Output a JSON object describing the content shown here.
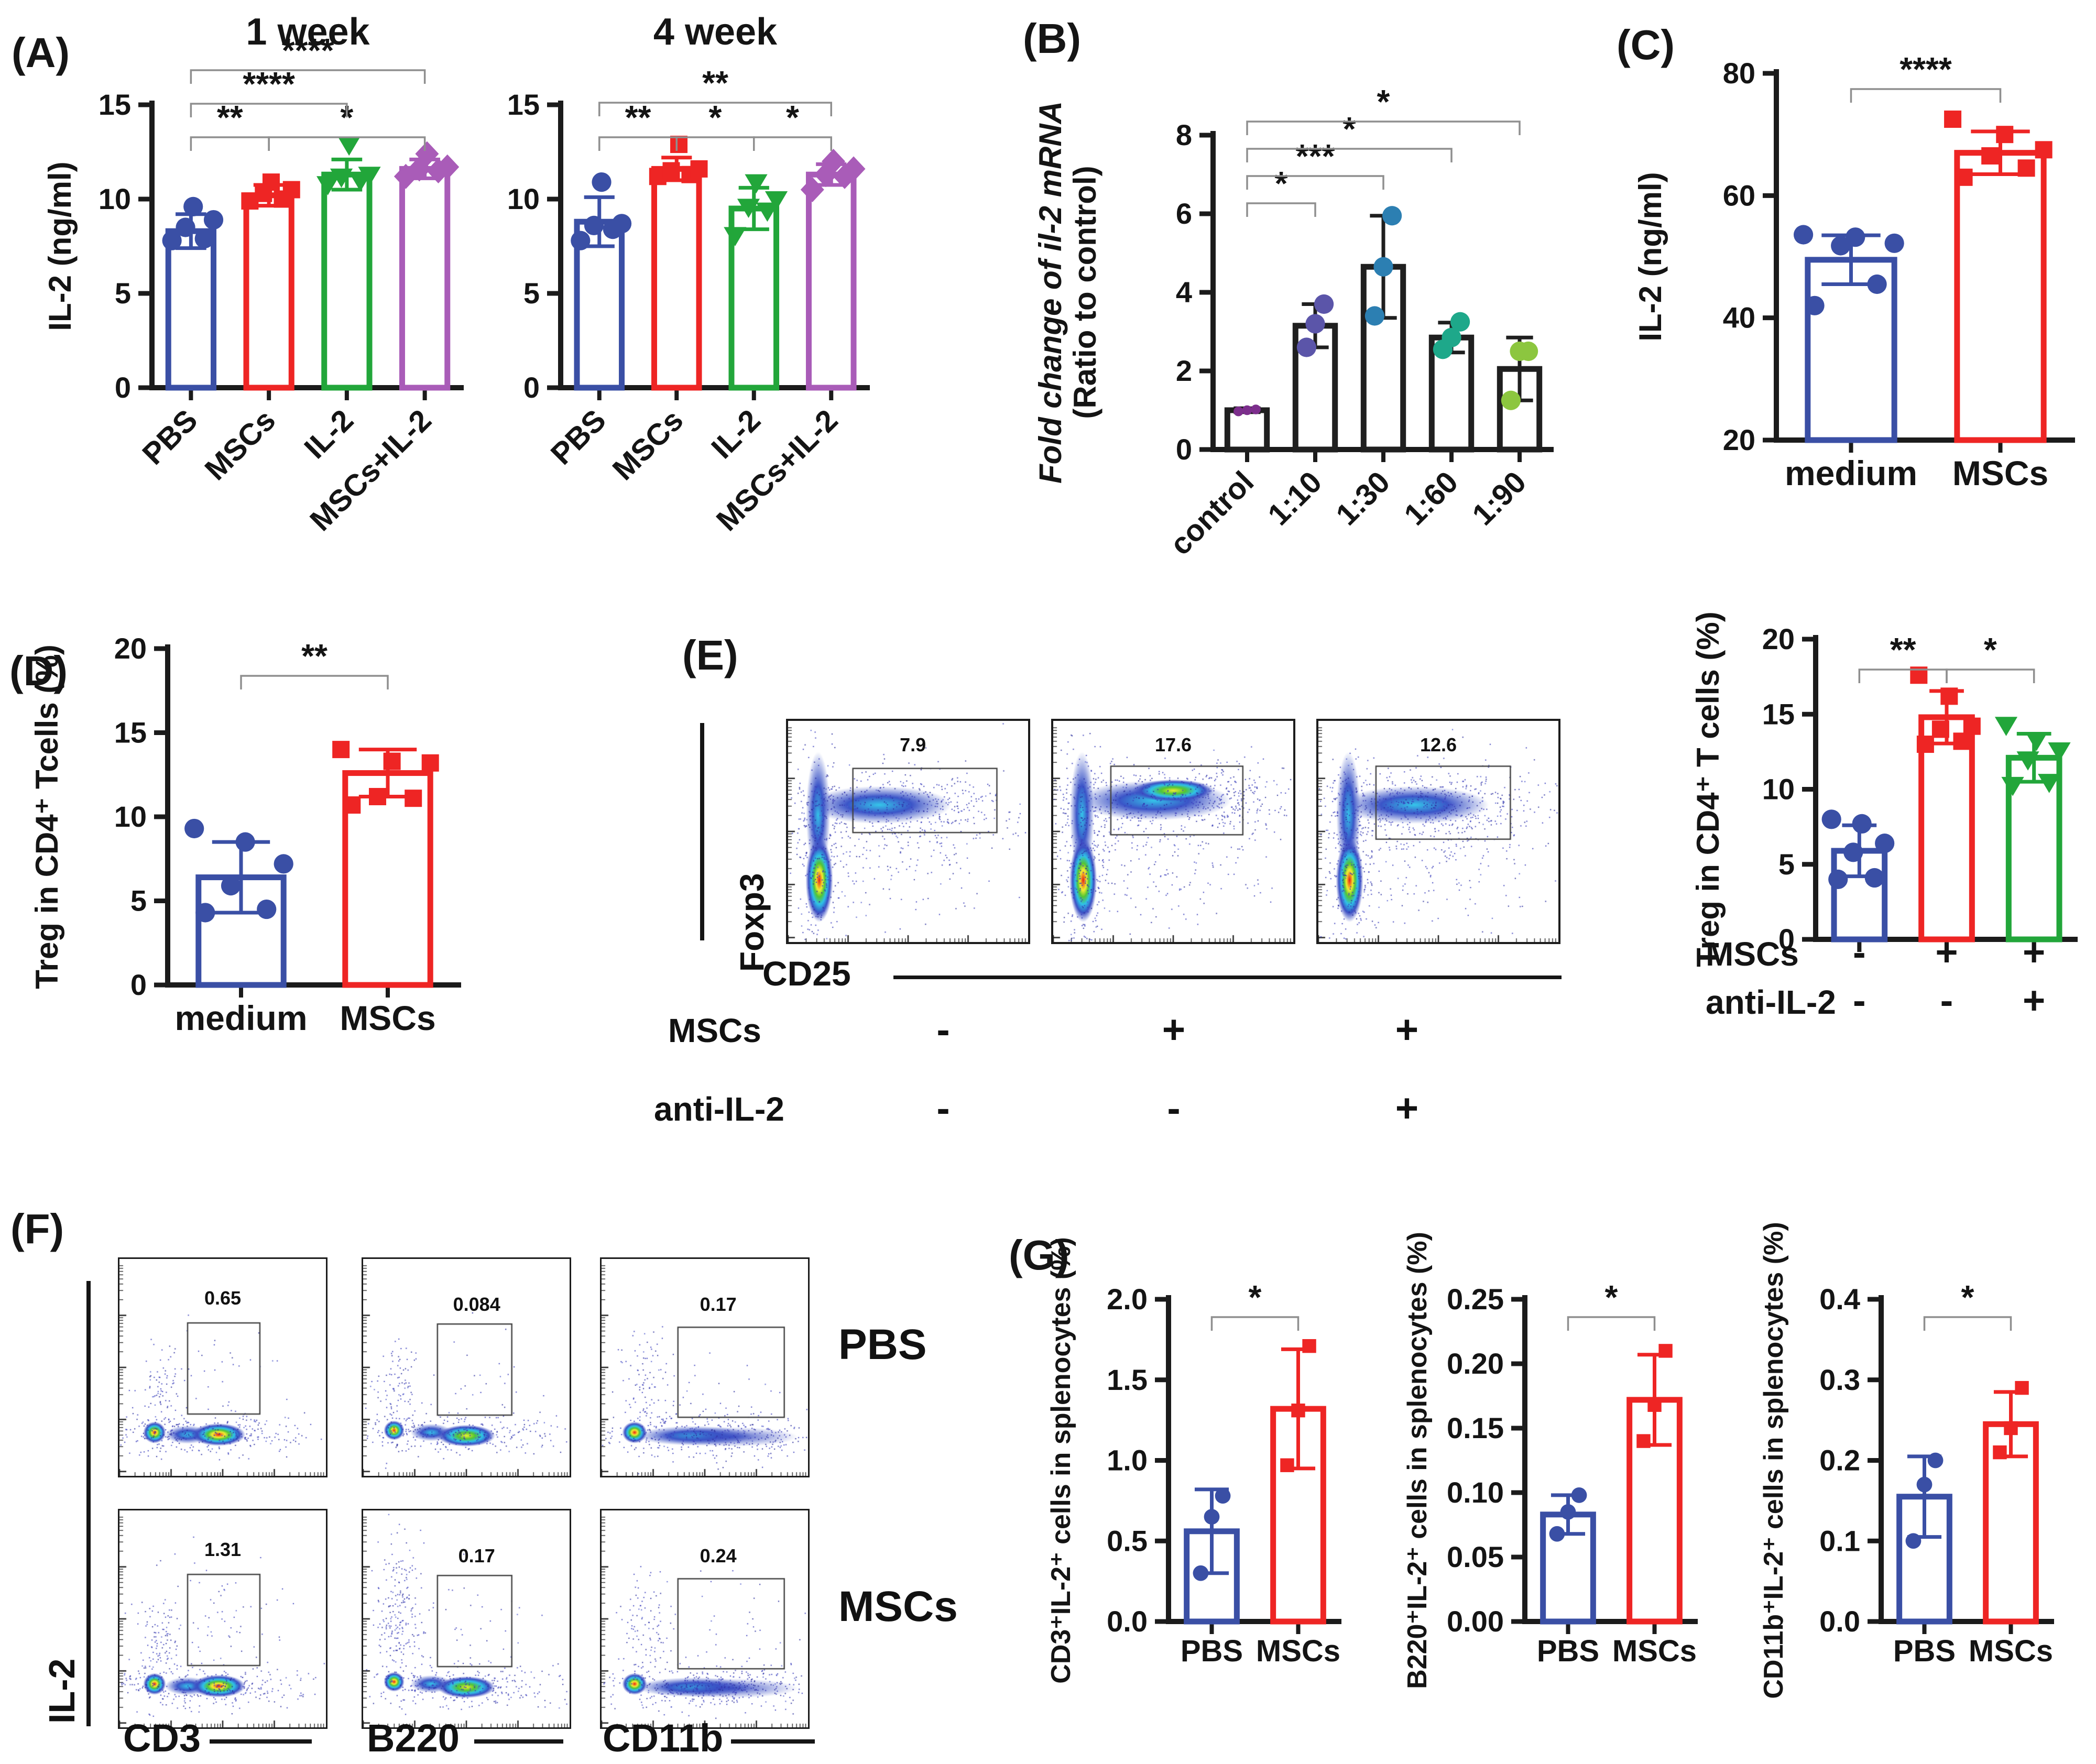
{
  "panel_labels": {
    "a": "(A)",
    "b": "(B)",
    "c": "(C)",
    "d": "(D)",
    "e": "(E)",
    "f": "(F)",
    "g": "(G)"
  },
  "colors": {
    "blue": "#3a4fa5",
    "red": "#ee2524",
    "green": "#22a63a",
    "purple": "#a95cb8",
    "black": "#1f1f1f",
    "bracket": "#8f8f8f",
    "axis": "#1b1b1b"
  },
  "chart_data": [
    {
      "id": "a1",
      "type": "bar",
      "title": "1 week",
      "ylabel": [
        {
          "text": "IL-2 (ng/ml)",
          "italic": false
        }
      ],
      "ymin": 0,
      "ymax": 15,
      "yticks": [
        0,
        5,
        10,
        15
      ],
      "ytick_labels": [
        "0",
        "5",
        "10",
        "15"
      ],
      "categories": [
        "PBS",
        "MSCs",
        "IL-2",
        "MSCs+IL-2"
      ],
      "values": [
        8.3,
        10.2,
        11.3,
        11.6
      ],
      "errors": [
        0.9,
        0.55,
        0.8,
        0.5
      ],
      "points": [
        [
          7.8,
          7.9,
          8.5,
          8.9,
          9.6
        ],
        [
          9.9,
          10.0,
          10.3,
          10.5,
          10.9
        ],
        [
          10.8,
          11.0,
          11.2,
          11.3,
          12.9
        ],
        [
          11.2,
          11.5,
          11.6,
          11.7,
          12.4
        ]
      ],
      "colors": [
        "blue",
        "red",
        "green",
        "purple"
      ],
      "markers": [
        "circle",
        "square",
        "triangle",
        "diamond"
      ],
      "brackets": [
        {
          "a": 0,
          "b": 1,
          "label": "**",
          "row": 0
        },
        {
          "a": 1,
          "b": 3,
          "label": "*",
          "row": 0
        },
        {
          "a": 0,
          "b": 2,
          "label": "****",
          "row": 1
        },
        {
          "a": 0,
          "b": 3,
          "label": "****",
          "row": 2
        }
      ]
    },
    {
      "id": "a2",
      "type": "bar",
      "title": "4 week",
      "ylabel": [],
      "ymin": 0,
      "ymax": 15,
      "yticks": [
        0,
        5,
        10,
        15
      ],
      "ytick_labels": [
        "0",
        "5",
        "10",
        "15"
      ],
      "categories": [
        "PBS",
        "MSCs",
        "IL-2",
        "MSCs+IL-2"
      ],
      "values": [
        8.8,
        11.6,
        9.5,
        11.3
      ],
      "errors": [
        1.3,
        0.6,
        1.1,
        0.55
      ],
      "points": [
        [
          7.8,
          8.4,
          8.6,
          8.7,
          10.9
        ],
        [
          11.2,
          11.3,
          11.5,
          11.6,
          12.9
        ],
        [
          8.1,
          9.4,
          9.6,
          10.0,
          10.9
        ],
        [
          10.5,
          11.2,
          11.3,
          11.6,
          12.0
        ]
      ],
      "colors": [
        "blue",
        "red",
        "green",
        "purple"
      ],
      "markers": [
        "circle",
        "square",
        "triangle",
        "diamond"
      ],
      "brackets": [
        {
          "a": 0,
          "b": 1,
          "label": "**",
          "row": 0
        },
        {
          "a": 1,
          "b": 2,
          "label": "*",
          "row": 0
        },
        {
          "a": 2,
          "b": 3,
          "label": "*",
          "row": 0
        },
        {
          "a": 0,
          "b": 3,
          "label": "**",
          "row": 1
        }
      ]
    },
    {
      "id": "b",
      "type": "bar",
      "title": "",
      "ylabel": [
        {
          "text": "Fold change of il-2 mRNA",
          "italic": true
        },
        {
          "text": "(Ratio to control)",
          "italic": false
        }
      ],
      "ymin": 0,
      "ymax": 8,
      "yticks": [
        0,
        2,
        4,
        6,
        8
      ],
      "ytick_labels": [
        "0",
        "2",
        "4",
        "6",
        "8"
      ],
      "categories": [
        "control",
        "1:10",
        "1:30",
        "1:60",
        "1:90"
      ],
      "values": [
        1.0,
        3.15,
        4.65,
        2.85,
        2.05
      ],
      "errors": [
        0.05,
        0.55,
        1.3,
        0.38,
        0.8
      ],
      "points": [
        [
          0.97,
          1.0,
          1.02
        ],
        [
          2.6,
          3.2,
          3.7
        ],
        [
          3.4,
          4.65,
          5.95
        ],
        [
          2.55,
          2.85,
          3.25
        ],
        [
          1.25,
          2.5,
          2.5
        ]
      ],
      "colors": [
        "black",
        "black",
        "black",
        "black",
        "black"
      ],
      "markers": [
        "circle",
        "circle",
        "circle",
        "circle",
        "circle"
      ],
      "point_colors": [
        "#7c2e8c",
        "#5b55a9",
        "#2c7fb2",
        "#1ea88a",
        "#8cc63f"
      ],
      "point_sizes": [
        15,
        30,
        30,
        30,
        30
      ],
      "brackets": [
        {
          "a": 0,
          "b": 1,
          "label": "*",
          "row": 0
        },
        {
          "a": 0,
          "b": 2,
          "label": "***",
          "row": 1
        },
        {
          "a": 0,
          "b": 3,
          "label": "*",
          "row": 2
        },
        {
          "a": 0,
          "b": 4,
          "label": "*",
          "row": 3
        }
      ]
    },
    {
      "id": "c",
      "type": "bar",
      "title": "",
      "ylabel": [
        {
          "text": "IL-2 (ng/ml)",
          "italic": false
        }
      ],
      "ymin": 20,
      "ymax": 80,
      "yticks": [
        20,
        40,
        60,
        80
      ],
      "ytick_labels": [
        "20",
        "40",
        "60",
        "80"
      ],
      "categories": [
        "medium",
        "MSCs"
      ],
      "values": [
        49.5,
        67
      ],
      "errors": [
        4,
        3.5
      ],
      "points": [
        [
          42,
          45.5,
          51.8,
          52.2,
          53.2,
          53.6
        ],
        [
          63,
          64.5,
          66.5,
          67.5,
          70,
          72.5
        ]
      ],
      "colors": [
        "blue",
        "red"
      ],
      "markers": [
        "circle",
        "square"
      ],
      "brackets": [
        {
          "a": 0,
          "b": 1,
          "label": "****",
          "row": 0
        }
      ]
    },
    {
      "id": "d",
      "type": "bar",
      "title": "",
      "ylabel": [
        {
          "text": "Treg in CD4⁺ Tcells (%)",
          "italic": false
        }
      ],
      "ymin": 0,
      "ymax": 20,
      "yticks": [
        0,
        5,
        10,
        15,
        20
      ],
      "ytick_labels": [
        "0",
        "5",
        "10",
        "15",
        "20"
      ],
      "categories": [
        "medium",
        "MSCs"
      ],
      "values": [
        6.4,
        12.6
      ],
      "errors": [
        2.1,
        1.4
      ],
      "points": [
        [
          4.3,
          4.5,
          5.9,
          7.2,
          8.5,
          9.3
        ],
        [
          10.7,
          11.1,
          11.2,
          13.2,
          13.3,
          14.0
        ]
      ],
      "colors": [
        "blue",
        "red"
      ],
      "markers": [
        "circle",
        "square"
      ],
      "brackets": [
        {
          "a": 0,
          "b": 1,
          "label": "**",
          "row": 0
        }
      ]
    },
    {
      "id": "e_bar",
      "type": "bar",
      "title": "",
      "ylabel": [
        {
          "text": "Treg in CD4⁺ T cells (%)",
          "italic": false
        }
      ],
      "ymin": 0,
      "ymax": 20,
      "yticks": [
        0,
        5,
        10,
        15,
        20
      ],
      "ytick_labels": [
        "0",
        "5",
        "10",
        "15",
        "20"
      ],
      "categories": [
        "",
        "",
        ""
      ],
      "values": [
        5.9,
        14.8,
        12.1
      ],
      "errors": [
        1.7,
        1.75,
        1.6
      ],
      "points": [
        [
          4.0,
          4.1,
          5.8,
          6.4,
          7.7,
          8.0
        ],
        [
          13.0,
          13.2,
          14.0,
          14.2,
          16.2,
          17.6
        ],
        [
          10.3,
          10.5,
          12.0,
          12.6,
          13.3,
          14.3
        ]
      ],
      "colors": [
        "blue",
        "red",
        "green"
      ],
      "markers": [
        "circle",
        "square",
        "triangle"
      ],
      "brackets": [
        {
          "a": 0,
          "b": 1,
          "label": "**",
          "row": 0
        },
        {
          "a": 1,
          "b": 2,
          "label": "*",
          "row": 0
        }
      ],
      "xrows": [
        {
          "label": "MSCs",
          "values": [
            "-",
            "+",
            "+"
          ]
        },
        {
          "label": "anti-IL-2",
          "values": [
            "-",
            "-",
            "+"
          ]
        }
      ]
    },
    {
      "id": "g1",
      "type": "bar",
      "title": "",
      "ylabel": [
        {
          "text": "CD3⁺IL-2⁺ cells in splenocytes (%)",
          "italic": false
        }
      ],
      "ymin": 0,
      "ymax": 2.0,
      "yticks": [
        0,
        0.5,
        1.0,
        1.5,
        2.0
      ],
      "ytick_labels": [
        "0.0",
        "0.5",
        "1.0",
        "1.5",
        "2.0"
      ],
      "categories": [
        "PBS",
        "MSCs"
      ],
      "values": [
        0.56,
        1.32
      ],
      "errors": [
        0.26,
        0.37
      ],
      "points": [
        [
          0.3,
          0.65,
          0.78
        ],
        [
          0.97,
          1.31,
          1.71
        ]
      ],
      "colors": [
        "blue",
        "red"
      ],
      "markers": [
        "circle",
        "square"
      ],
      "brackets": [
        {
          "a": 0,
          "b": 1,
          "label": "*",
          "row": 0
        }
      ]
    },
    {
      "id": "g2",
      "type": "bar",
      "title": "",
      "ylabel": [
        {
          "text": "B220⁺IL-2⁺ cells in splenocytes (%)",
          "italic": false
        }
      ],
      "ymin": 0,
      "ymax": 0.25,
      "yticks": [
        0,
        0.05,
        0.1,
        0.15,
        0.2,
        0.25
      ],
      "ytick_labels": [
        "0.00",
        "0.05",
        "0.10",
        "0.15",
        "0.20",
        "0.25"
      ],
      "categories": [
        "PBS",
        "MSCs"
      ],
      "values": [
        0.083,
        0.172
      ],
      "errors": [
        0.015,
        0.035
      ],
      "points": [
        [
          0.068,
          0.085,
          0.098
        ],
        [
          0.14,
          0.168,
          0.21
        ]
      ],
      "colors": [
        "blue",
        "red"
      ],
      "markers": [
        "circle",
        "square"
      ],
      "brackets": [
        {
          "a": 0,
          "b": 1,
          "label": "*",
          "row": 0
        }
      ]
    },
    {
      "id": "g3",
      "type": "bar",
      "title": "",
      "ylabel": [
        {
          "text": "CD11b⁺IL-2⁺ cells in splenocytes (%)",
          "italic": false
        }
      ],
      "ymin": 0,
      "ymax": 0.4,
      "yticks": [
        0,
        0.1,
        0.2,
        0.3,
        0.4
      ],
      "ytick_labels": [
        "0.0",
        "0.1",
        "0.2",
        "0.3",
        "0.4"
      ],
      "categories": [
        "PBS",
        "MSCs"
      ],
      "values": [
        0.155,
        0.245
      ],
      "errors": [
        0.05,
        0.04
      ],
      "points": [
        [
          0.1,
          0.17,
          0.2
        ],
        [
          0.21,
          0.24,
          0.29
        ]
      ],
      "colors": [
        "blue",
        "red"
      ],
      "markers": [
        "circle",
        "square"
      ],
      "brackets": [
        {
          "a": 0,
          "b": 1,
          "label": "*",
          "row": 0
        }
      ]
    }
  ],
  "flow_e": {
    "ylabel": "Foxp3",
    "xlabel": "CD25",
    "plots": [
      {
        "gate": "7.9"
      },
      {
        "gate": "17.6"
      },
      {
        "gate": "12.6"
      }
    ],
    "rows": [
      {
        "label": "MSCs",
        "values": [
          "-",
          "+",
          "+"
        ]
      },
      {
        "label": "anti-IL-2",
        "values": [
          "-",
          "-",
          "+"
        ]
      }
    ]
  },
  "flow_f": {
    "ylabel": "IL-2",
    "xlabels": [
      "CD3",
      "B220",
      "CD11b"
    ],
    "row_labels": [
      "PBS",
      "MSCs"
    ],
    "plots": [
      [
        "0.65",
        "0.084",
        "0.17"
      ],
      [
        "1.31",
        "0.17",
        "0.24"
      ]
    ]
  }
}
